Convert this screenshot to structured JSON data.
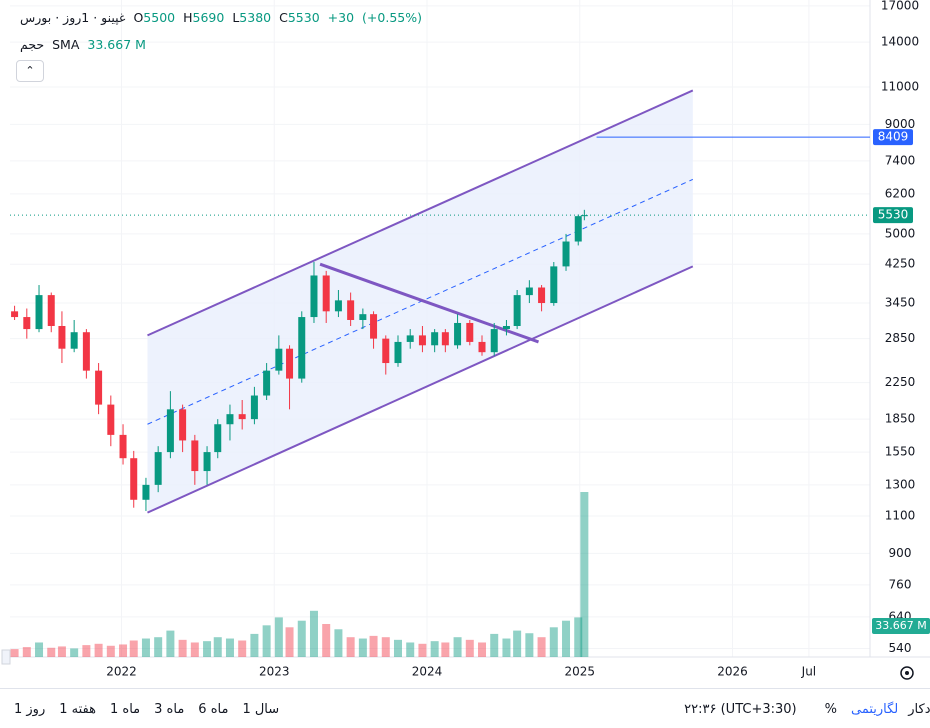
{
  "header": {
    "title": "غپینو · 1روز · بورس",
    "ohlc_letters": [
      "O",
      "H",
      "L",
      "C"
    ],
    "change": {
      "value": 30,
      "label": "+30"
    },
    "change_pct": {
      "value": 0.55,
      "label": "(+0.55%)"
    },
    "volume_title": "حجم",
    "volume_indicator": "SMA",
    "volume_sma": {
      "value": 33.667,
      "label": "33.667 M"
    }
  },
  "chart_data": {
    "type": "candlestick",
    "x": [
      2021.3,
      2021.38,
      2021.46,
      2021.54,
      2021.61,
      2021.69,
      2021.77,
      2021.85,
      2021.93,
      2022.01,
      2022.08,
      2022.16,
      2022.24,
      2022.32,
      2022.4,
      2022.48,
      2022.56,
      2022.63,
      2022.71,
      2022.79,
      2022.87,
      2022.95,
      2023.03,
      2023.1,
      2023.18,
      2023.26,
      2023.34,
      2023.42,
      2023.5,
      2023.58,
      2023.65,
      2023.73,
      2023.81,
      2023.89,
      2023.97,
      2024.05,
      2024.12,
      2024.2,
      2024.28,
      2024.36,
      2024.44,
      2024.52,
      2024.59,
      2024.67,
      2024.75,
      2024.83,
      2024.91,
      2024.99,
      2025.03
    ],
    "open": [
      3300,
      3200,
      3000,
      3600,
      3050,
      2700,
      2950,
      2400,
      2000,
      1700,
      1500,
      1200,
      1300,
      1550,
      1950,
      1650,
      1400,
      1550,
      1800,
      1900,
      1850,
      2100,
      2400,
      2700,
      2300,
      3200,
      4000,
      3300,
      3500,
      3150,
      3250,
      2850,
      2500,
      2800,
      2900,
      2750,
      2950,
      2750,
      3100,
      2800,
      2650,
      3000,
      3050,
      3600,
      3750,
      3450,
      4200,
      4800,
      5500
    ],
    "high": [
      3400,
      3350,
      3800,
      3650,
      3300,
      3150,
      3000,
      2500,
      2100,
      1800,
      1560,
      1350,
      1600,
      2150,
      2000,
      1700,
      1600,
      1850,
      2000,
      2050,
      2200,
      2500,
      2900,
      2750,
      3300,
      4300,
      4100,
      3700,
      3650,
      3350,
      3300,
      2900,
      2900,
      3000,
      3050,
      3000,
      3000,
      3250,
      3150,
      2900,
      3100,
      3150,
      3700,
      3900,
      3800,
      4300,
      5000,
      5550,
      5690
    ],
    "low": [
      3150,
      2850,
      2950,
      2950,
      2500,
      2650,
      2300,
      1900,
      1600,
      1450,
      1150,
      1130,
      1250,
      1500,
      1550,
      1300,
      1300,
      1500,
      1650,
      1750,
      1800,
      2050,
      2350,
      1950,
      2250,
      3100,
      3100,
      3200,
      3050,
      3000,
      2700,
      2350,
      2450,
      2700,
      2650,
      2650,
      2650,
      2700,
      2750,
      2600,
      2600,
      2900,
      3000,
      3450,
      3300,
      3400,
      4100,
      4700,
      5380
    ],
    "close": [
      3200,
      3000,
      3600,
      3050,
      2700,
      2950,
      2400,
      2000,
      1700,
      1500,
      1200,
      1300,
      1550,
      1950,
      1650,
      1400,
      1550,
      1800,
      1900,
      1850,
      2100,
      2400,
      2700,
      2300,
      3200,
      4000,
      3300,
      3500,
      3150,
      3250,
      2850,
      2500,
      2800,
      2900,
      2750,
      2950,
      2750,
      3100,
      2800,
      2650,
      3000,
      3050,
      3600,
      3750,
      3450,
      4200,
      4800,
      5500,
      5530
    ],
    "volume": [
      12,
      15,
      22,
      14,
      16,
      13,
      18,
      20,
      17,
      19,
      25,
      28,
      30,
      40,
      26,
      22,
      24,
      30,
      28,
      25,
      35,
      48,
      60,
      45,
      55,
      70,
      50,
      42,
      30,
      28,
      32,
      30,
      26,
      22,
      20,
      24,
      22,
      30,
      26,
      22,
      35,
      28,
      40,
      36,
      30,
      45,
      55,
      60,
      250
    ],
    "up_color": "#089981",
    "down_color": "#f23645",
    "xlim": [
      2021.27,
      2026.9
    ],
    "xticks": [
      2022,
      2023,
      2024,
      2025,
      2026,
      {
        "value": 2026.5,
        "label": "Jul"
      }
    ],
    "ylim": [
      516,
      17550
    ],
    "log_scale": true,
    "grid": true,
    "yticks": [
      17000,
      14000,
      11000,
      9000,
      7400,
      6200,
      5000,
      4250,
      3450,
      2850,
      2250,
      1850,
      1550,
      1300,
      1100,
      900,
      760,
      640,
      540
    ],
    "channel": {
      "x": [
        2022.17,
        2025.74
      ],
      "upper": [
        2900,
        10800
      ],
      "middle": [
        1800,
        6700
      ],
      "lower": [
        1120,
        4200
      ],
      "color": "#7e57c2",
      "fill": "#e8effc"
    },
    "trend_line": {
      "x": [
        2023.3,
        2024.73
      ],
      "values": [
        4250,
        2800
      ],
      "color": "#7e57c2"
    },
    "horizontal_line": {
      "x": 2025.11,
      "value": 8409,
      "color": "#2962ff"
    }
  },
  "toolbar": {
    "ranges": [
      "1 روز",
      "1 هفته",
      "1 ماه",
      "3 ماه",
      "6 ماه",
      "1 سال"
    ],
    "time": "۲۲:۳۶ (UTC+3:30)",
    "percent": "%",
    "log": "لگاریتمی",
    "auto": "خودکار"
  }
}
